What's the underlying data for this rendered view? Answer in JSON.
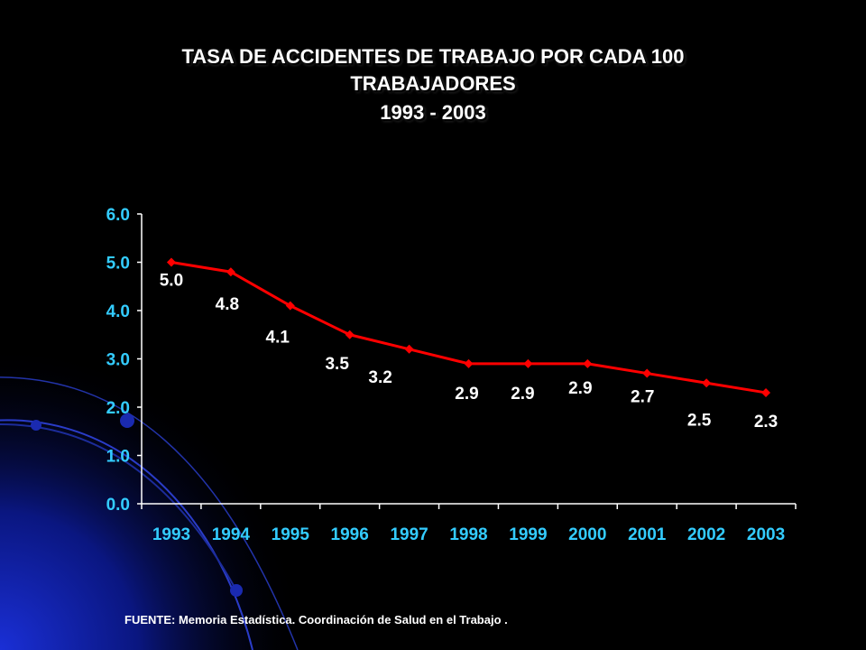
{
  "title": {
    "line1": "TASA DE ACCIDENTES DE TRABAJO POR CADA 100",
    "line2": "TRABAJADORES",
    "line3": "1993 - 2003"
  },
  "source": "FUENTE: Memoria Estadística. Coordinación de Salud en el Trabajo .",
  "colors": {
    "background": "#000000",
    "series": "#ff0000",
    "axis": "#ffffff",
    "tick_labels": "#33ccff",
    "data_labels": "#ffffff"
  },
  "chart_data": {
    "type": "line",
    "categories": [
      "1993",
      "1994",
      "1995",
      "1996",
      "1997",
      "1998",
      "1999",
      "2000",
      "2001",
      "2002",
      "2003"
    ],
    "series": [
      {
        "values": [
          5.0,
          4.8,
          4.1,
          3.5,
          3.2,
          2.9,
          2.9,
          2.9,
          2.7,
          2.5,
          2.3
        ]
      }
    ],
    "data_labels": [
      "5.0",
      "4.8",
      "4.1",
      "3.5",
      "3.2",
      "2.9",
      "2.9",
      "2.9",
      "2.7",
      "2.5",
      "2.3"
    ],
    "y_ticks": [
      "0.0",
      "1.0",
      "2.0",
      "3.0",
      "4.0",
      "5.0",
      "6.0"
    ],
    "ylim": [
      0,
      6
    ],
    "grid": false,
    "legend": "none",
    "marker": "diamond"
  }
}
